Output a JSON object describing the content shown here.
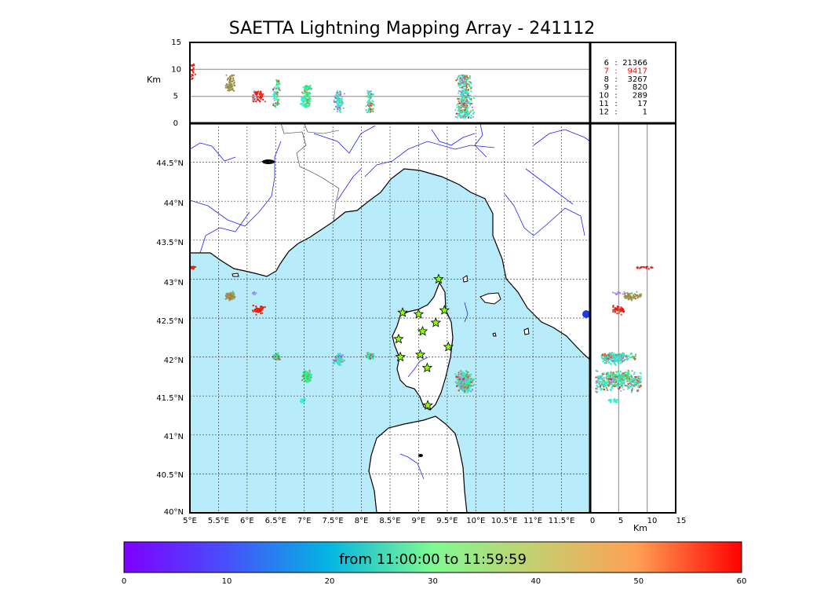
{
  "title": "SAETTA Lightning Mapping Array - 241112",
  "colorbar": {
    "label": "from 11:00:00 to 11:59:59",
    "ticks": [
      "0",
      "10",
      "20",
      "30",
      "40",
      "50",
      "60"
    ],
    "min": 0,
    "max": 60
  },
  "map": {
    "lon_range": [
      5.0,
      12.0
    ],
    "lat_range": [
      40.0,
      45.0
    ],
    "lon_ticks": [
      "5°E",
      "5.5°E",
      "6°E",
      "6.5°E",
      "7°E",
      "7.5°E",
      "8°E",
      "8.5°E",
      "9°E",
      "9.5°E",
      "10°E",
      "10.5°E",
      "11°E",
      "11.5°E"
    ],
    "lat_ticks": [
      "40°N",
      "40.5°N",
      "41°N",
      "41.5°N",
      "42°N",
      "42.5°N",
      "43°N",
      "43.5°N",
      "44°N",
      "44.5°N"
    ],
    "sea_color": "#b8ecfa",
    "land_color": "#ffffff",
    "grid": true
  },
  "altitude_panel": {
    "ylabel": "Km",
    "yticks": [
      "0",
      "5",
      "10",
      "15"
    ],
    "ylim": [
      0,
      15
    ]
  },
  "side_panel": {
    "xlabel": "Km",
    "xticks": [
      "0",
      "5",
      "10",
      "15"
    ],
    "xlim": [
      0,
      15
    ]
  },
  "station_stats": [
    {
      "count_label": "6",
      "value": "21366",
      "color": "#000000"
    },
    {
      "count_label": "7",
      "value": "9417",
      "color": "#ff0000"
    },
    {
      "count_label": "8",
      "value": "3267",
      "color": "#000000"
    },
    {
      "count_label": "9",
      "value": "820",
      "color": "#000000"
    },
    {
      "count_label": "10",
      "value": "289",
      "color": "#000000"
    },
    {
      "count_label": "11",
      "value": "17",
      "color": "#000000"
    },
    {
      "count_label": "12",
      "value": "1",
      "color": "#000000"
    }
  ],
  "stations": [
    {
      "lon": 9.35,
      "lat": 43.0
    },
    {
      "lon": 8.72,
      "lat": 42.57
    },
    {
      "lon": 9.0,
      "lat": 42.55
    },
    {
      "lon": 9.45,
      "lat": 42.6
    },
    {
      "lon": 9.3,
      "lat": 42.44
    },
    {
      "lon": 9.07,
      "lat": 42.33
    },
    {
      "lon": 8.65,
      "lat": 42.23
    },
    {
      "lon": 9.52,
      "lat": 42.13
    },
    {
      "lon": 8.68,
      "lat": 42.0
    },
    {
      "lon": 9.03,
      "lat": 42.03
    },
    {
      "lon": 9.15,
      "lat": 41.86
    },
    {
      "lon": 9.16,
      "lat": 41.38
    }
  ],
  "clusters": [
    {
      "lon": 5.05,
      "lat": 43.15,
      "rl": 0.05,
      "ra": 0.02,
      "alt": [
        8,
        11
      ],
      "t": [
        56,
        60
      ],
      "n": 22
    },
    {
      "lon": 5.7,
      "lat": 42.78,
      "rl": 0.11,
      "ra": 0.07,
      "alt": [
        6,
        9
      ],
      "t": [
        44,
        52
      ],
      "n": 80
    },
    {
      "lon": 6.13,
      "lat": 42.82,
      "rl": 0.06,
      "ra": 0.03,
      "alt": [
        4,
        6
      ],
      "t": [
        8,
        14
      ],
      "n": 14
    },
    {
      "lon": 6.2,
      "lat": 42.6,
      "rl": 0.14,
      "ra": 0.07,
      "alt": [
        4,
        6
      ],
      "t": [
        54,
        60
      ],
      "n": 45
    },
    {
      "lon": 6.52,
      "lat": 42.0,
      "rl": 0.08,
      "ra": 0.06,
      "alt": [
        3,
        8
      ],
      "t": [
        10,
        58
      ],
      "n": 70
    },
    {
      "lon": 7.05,
      "lat": 41.75,
      "rl": 0.11,
      "ra": 0.1,
      "alt": [
        3,
        7
      ],
      "t": [
        28,
        50
      ],
      "n": 120
    },
    {
      "lon": 6.98,
      "lat": 41.44,
      "rl": 0.06,
      "ra": 0.03,
      "alt": [
        3,
        5
      ],
      "t": [
        22,
        26
      ],
      "n": 24
    },
    {
      "lon": 7.6,
      "lat": 41.97,
      "rl": 0.11,
      "ra": 0.09,
      "alt": [
        2,
        6
      ],
      "t": [
        2,
        44
      ],
      "n": 110
    },
    {
      "lon": 8.15,
      "lat": 42.02,
      "rl": 0.09,
      "ra": 0.06,
      "alt": [
        2,
        6
      ],
      "t": [
        8,
        56
      ],
      "n": 80
    },
    {
      "lon": 9.8,
      "lat": 41.68,
      "rl": 0.18,
      "ra": 0.16,
      "alt": [
        1,
        9
      ],
      "t": [
        8,
        58
      ],
      "n": 380
    }
  ]
}
